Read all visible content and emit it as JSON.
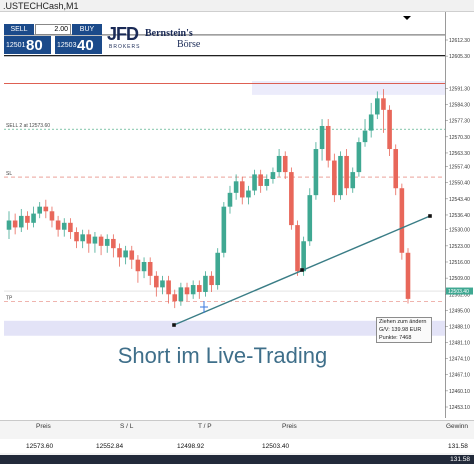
{
  "window": {
    "title": ".USTECHCash,M1"
  },
  "trade_panel": {
    "sell_label": "SELL",
    "buy_label": "BUY",
    "quantity": "2.00",
    "sell_price_small": "12501",
    "sell_price_big": "80",
    "buy_price_small": "12503",
    "buy_price_big": "40"
  },
  "logos": {
    "jfd": "JFD",
    "jfd_sub": "BROKERS",
    "bb_line1": "Bernstein's",
    "bb_line2": "Börse"
  },
  "overlay_title": "Short im Live-Trading",
  "chart_lines": {
    "sell_label": "SELL 2 at 12573.60",
    "sl_label": "SL",
    "tp_label": "TP"
  },
  "price_axis": [
    "12612.30",
    "12605.30",
    "12591.30",
    "12584.30",
    "12577.30",
    "12570.30",
    "12563.30",
    "12557.40",
    "12550.40",
    "12543.40",
    "12536.40",
    "12530.00",
    "12523.00",
    "12516.00",
    "12509.00",
    "12502.00",
    "12495.00",
    "12488.10",
    "12481.10",
    "12474.10",
    "12467.10",
    "12460.10",
    "12453.10"
  ],
  "tooltip": {
    "line1": "Ziehen zum ändern",
    "line2": "G/V: 139.98 EUR",
    "line3": "Punkte: 7468"
  },
  "position_table": {
    "headers": [
      "Preis",
      "S / L",
      "T / P",
      "Preis",
      "Gewinn"
    ],
    "values": [
      "12573.60",
      "12552.84",
      "12498.92",
      "12503.40",
      "131.58"
    ],
    "balance": "131.58"
  },
  "colors": {
    "bull": "#3fa892",
    "bear": "#e8675a",
    "trendline": "#3a7d86",
    "accent": "#1b4a8a"
  },
  "chart_data": {
    "type": "candlestick",
    "price_levels": {
      "sell_entry": 12573.6,
      "stop_loss": 12552.84,
      "take_profit": 12498.92,
      "current": 12503.4
    },
    "candles": [
      [
        12530,
        12534,
        12526,
        12538
      ],
      [
        12534,
        12531,
        12528,
        12537
      ],
      [
        12531,
        12536,
        12529,
        12539
      ],
      [
        12536,
        12533,
        12530,
        12538
      ],
      [
        12533,
        12537,
        12531,
        12540
      ],
      [
        12537,
        12540,
        12535,
        12542
      ],
      [
        12540,
        12538,
        12535,
        12543
      ],
      [
        12538,
        12534,
        12531,
        12540
      ],
      [
        12534,
        12530,
        12527,
        12536
      ],
      [
        12530,
        12533,
        12527,
        12535
      ],
      [
        12533,
        12529,
        12526,
        12535
      ],
      [
        12529,
        12525,
        12522,
        12531
      ],
      [
        12525,
        12528,
        12522,
        12530
      ],
      [
        12528,
        12524,
        12520,
        12530
      ],
      [
        12524,
        12527,
        12520,
        12529
      ],
      [
        12527,
        12523,
        12519,
        12528
      ],
      [
        12523,
        12526,
        12520,
        12528
      ],
      [
        12526,
        12522,
        12518,
        12528
      ],
      [
        12522,
        12518,
        12514,
        12524
      ],
      [
        12518,
        12521,
        12515,
        12523
      ],
      [
        12521,
        12517,
        12513,
        12523
      ],
      [
        12517,
        12512,
        12507,
        12519
      ],
      [
        12512,
        12516,
        12509,
        12518
      ],
      [
        12516,
        12510,
        12506,
        12518
      ],
      [
        12510,
        12505,
        12501,
        12512
      ],
      [
        12505,
        12508,
        12502,
        12510
      ],
      [
        12508,
        12502,
        12498,
        12510
      ],
      [
        12502,
        12499,
        12496,
        12504
      ],
      [
        12499,
        12505,
        12497,
        12507
      ],
      [
        12505,
        12502,
        12499,
        12507
      ],
      [
        12502,
        12506,
        12500,
        12508
      ],
      [
        12506,
        12503,
        12500,
        12508
      ],
      [
        12503,
        12510,
        12501,
        12512
      ],
      [
        12510,
        12506,
        12503,
        12512
      ],
      [
        12506,
        12520,
        12504,
        12522
      ],
      [
        12520,
        12540,
        12518,
        12542
      ],
      [
        12540,
        12546,
        12537,
        12549
      ],
      [
        12546,
        12551,
        12543,
        12554
      ],
      [
        12551,
        12544,
        12541,
        12553
      ],
      [
        12544,
        12547,
        12541,
        12549
      ],
      [
        12547,
        12554,
        12545,
        12556
      ],
      [
        12554,
        12549,
        12546,
        12556
      ],
      [
        12549,
        12552,
        12547,
        12554
      ],
      [
        12552,
        12555,
        12550,
        12557
      ],
      [
        12555,
        12562,
        12553,
        12565
      ],
      [
        12562,
        12555,
        12552,
        12564
      ],
      [
        12555,
        12532,
        12530,
        12557
      ],
      [
        12532,
        12512,
        12510,
        12534
      ],
      [
        12512,
        12525,
        12510,
        12527
      ],
      [
        12525,
        12545,
        12523,
        12548
      ],
      [
        12545,
        12565,
        12543,
        12568
      ],
      [
        12565,
        12575,
        12560,
        12578
      ],
      [
        12575,
        12560,
        12557,
        12578
      ],
      [
        12560,
        12545,
        12542,
        12563
      ],
      [
        12545,
        12562,
        12543,
        12564
      ],
      [
        12562,
        12548,
        12545,
        12565
      ],
      [
        12548,
        12555,
        12546,
        12557
      ],
      [
        12555,
        12568,
        12553,
        12570
      ],
      [
        12568,
        12573,
        12566,
        12578
      ],
      [
        12573,
        12580,
        12570,
        12585
      ],
      [
        12580,
        12587,
        12578,
        12590
      ],
      [
        12587,
        12582,
        12572,
        12591
      ],
      [
        12582,
        12565,
        12562,
        12584
      ],
      [
        12565,
        12548,
        12545,
        12567
      ],
      [
        12548,
        12520,
        12517,
        12550
      ],
      [
        12520,
        12500,
        12498,
        12522
      ]
    ]
  }
}
